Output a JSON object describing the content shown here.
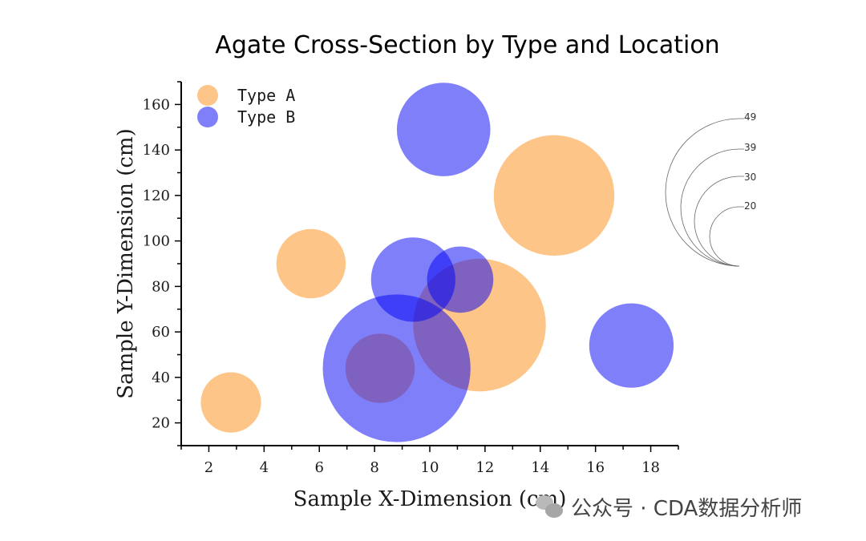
{
  "chart_data": {
    "type": "scatter",
    "subtype": "bubble",
    "title": "Agate Cross-Section by Type and Location",
    "xlabel": "Sample X-Dimension (cm)",
    "ylabel": "Sample Y-Dimension (cm)",
    "xlim": [
      1,
      19
    ],
    "ylim": [
      10,
      170
    ],
    "xticks": [
      2,
      4,
      6,
      8,
      10,
      12,
      14,
      16,
      18
    ],
    "yticks": [
      20,
      40,
      60,
      80,
      100,
      120,
      140,
      160
    ],
    "legend_position": "top-left",
    "series": [
      {
        "name": "Type A",
        "color": "#FDA94F",
        "points": [
          {
            "x": 2.8,
            "y": 29,
            "size": 20
          },
          {
            "x": 5.7,
            "y": 90,
            "size": 23
          },
          {
            "x": 8.2,
            "y": 44,
            "size": 23
          },
          {
            "x": 11.8,
            "y": 63,
            "size": 44
          },
          {
            "x": 14.5,
            "y": 120,
            "size": 40
          }
        ]
      },
      {
        "name": "Type B",
        "color": "#0000F5",
        "points": [
          {
            "x": 10.5,
            "y": 149,
            "size": 31
          },
          {
            "x": 9.4,
            "y": 83,
            "size": 28
          },
          {
            "x": 11.1,
            "y": 83,
            "size": 22
          },
          {
            "x": 8.8,
            "y": 44,
            "size": 49
          },
          {
            "x": 17.3,
            "y": 54,
            "size": 28
          }
        ]
      }
    ],
    "size_legend": [
      "49",
      "39",
      "30",
      "20"
    ]
  },
  "watermark": {
    "text": "公众号 · CDA数据分析师"
  }
}
